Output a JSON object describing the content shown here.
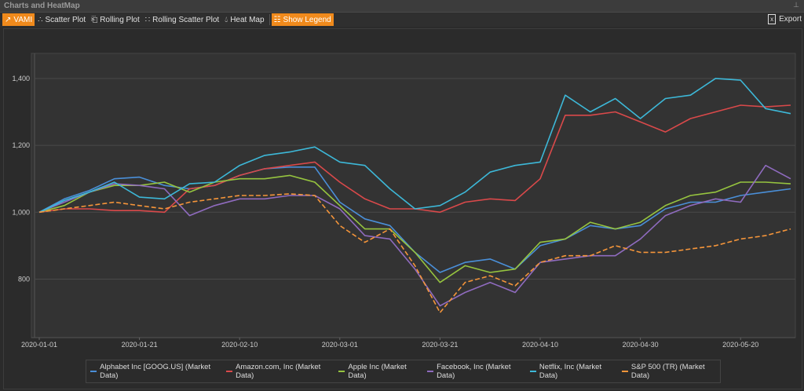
{
  "window": {
    "title": "Charts and HeatMap",
    "pin_icon": "pin-icon"
  },
  "toolbar": {
    "items": [
      {
        "label": "VAMI",
        "icon": "line-chart-icon",
        "active": true
      },
      {
        "label": "Scatter Plot",
        "icon": "scatter-icon",
        "active": false
      },
      {
        "label": "Rolling Plot",
        "icon": "scroll-icon",
        "active": false
      },
      {
        "label": "Rolling Scatter Plot",
        "icon": "rolling-scatter-icon",
        "active": false
      },
      {
        "label": "Heat Map",
        "icon": "drop-icon",
        "active": false
      },
      {
        "label": "Show Legend",
        "icon": "legend-icon",
        "active": true
      }
    ],
    "export_label": "Export"
  },
  "colors": {
    "accent": "#f08a1c",
    "Alphabet": "#4a8fd8",
    "Amazon": "#d9494a",
    "Apple": "#96c43f",
    "Facebook": "#8f6bbf",
    "Netflix": "#3db8d8",
    "SP500": "#f5953a"
  },
  "chart_data": {
    "type": "line",
    "title": "",
    "xlabel": "",
    "ylabel": "",
    "ylim": [
      625,
      1475
    ],
    "yticks": [
      800,
      1000,
      1200,
      1400
    ],
    "ytick_labels": [
      "800",
      "1,000",
      "1,200",
      "1,400"
    ],
    "xtick_labels": [
      "2020-01-01",
      "2020-01-21",
      "2020-02-10",
      "2020-03-01",
      "2020-03-21",
      "2020-04-10",
      "2020-04-30",
      "2020-05-20"
    ],
    "xtick_days": [
      0,
      20,
      40,
      60,
      80,
      100,
      120,
      140
    ],
    "x_days": [
      0,
      5,
      10,
      15,
      20,
      25,
      30,
      35,
      40,
      45,
      50,
      55,
      60,
      65,
      70,
      75,
      80,
      85,
      90,
      95,
      100,
      105,
      110,
      115,
      120,
      125,
      130,
      135,
      140,
      145,
      150
    ],
    "legend_position": "bottom",
    "grid": true,
    "series": [
      {
        "name": "Alphabet Inc [GOOG.US] (Market Data)",
        "key": "Alphabet",
        "dashed": false,
        "values": [
          1000,
          1040,
          1065,
          1100,
          1105,
          1080,
          1070,
          1080,
          1110,
          1130,
          1135,
          1135,
          1030,
          980,
          960,
          880,
          820,
          850,
          860,
          830,
          900,
          920,
          960,
          950,
          960,
          1010,
          1030,
          1030,
          1050,
          1060,
          1070
        ]
      },
      {
        "name": "Amazon.com, Inc (Market Data)",
        "key": "Amazon",
        "dashed": false,
        "values": [
          1000,
          1010,
          1010,
          1005,
          1005,
          1000,
          1070,
          1080,
          1110,
          1130,
          1140,
          1150,
          1090,
          1040,
          1010,
          1010,
          1000,
          1030,
          1040,
          1035,
          1100,
          1290,
          1290,
          1300,
          1270,
          1240,
          1280,
          1300,
          1320,
          1315,
          1320
        ]
      },
      {
        "name": "Apple Inc (Market Data)",
        "key": "Apple",
        "dashed": false,
        "values": [
          1000,
          1020,
          1060,
          1080,
          1080,
          1090,
          1060,
          1090,
          1100,
          1100,
          1110,
          1090,
          1020,
          950,
          950,
          880,
          790,
          840,
          820,
          830,
          910,
          920,
          970,
          950,
          970,
          1020,
          1050,
          1060,
          1090,
          1090,
          1085
        ]
      },
      {
        "name": "Facebook, Inc (Market Data)",
        "key": "Facebook",
        "dashed": false,
        "values": [
          1000,
          1030,
          1060,
          1085,
          1080,
          1070,
          990,
          1020,
          1040,
          1040,
          1050,
          1050,
          1010,
          930,
          920,
          830,
          720,
          760,
          790,
          760,
          850,
          860,
          870,
          870,
          920,
          990,
          1020,
          1040,
          1030,
          1140,
          1100
        ]
      },
      {
        "name": "Netflix, Inc (Market Data)",
        "key": "Netflix",
        "dashed": false,
        "values": [
          1000,
          1035,
          1060,
          1090,
          1045,
          1040,
          1085,
          1090,
          1140,
          1170,
          1180,
          1195,
          1150,
          1140,
          1070,
          1010,
          1020,
          1060,
          1120,
          1140,
          1150,
          1350,
          1300,
          1340,
          1280,
          1340,
          1350,
          1400,
          1395,
          1310,
          1295
        ]
      },
      {
        "name": "S&P 500 (TR) (Market Data)",
        "key": "SP500",
        "dashed": true,
        "values": [
          1000,
          1010,
          1020,
          1030,
          1020,
          1010,
          1030,
          1040,
          1050,
          1050,
          1055,
          1050,
          960,
          910,
          950,
          840,
          700,
          790,
          810,
          780,
          850,
          870,
          870,
          900,
          880,
          880,
          890,
          900,
          920,
          930,
          950
        ]
      }
    ]
  }
}
